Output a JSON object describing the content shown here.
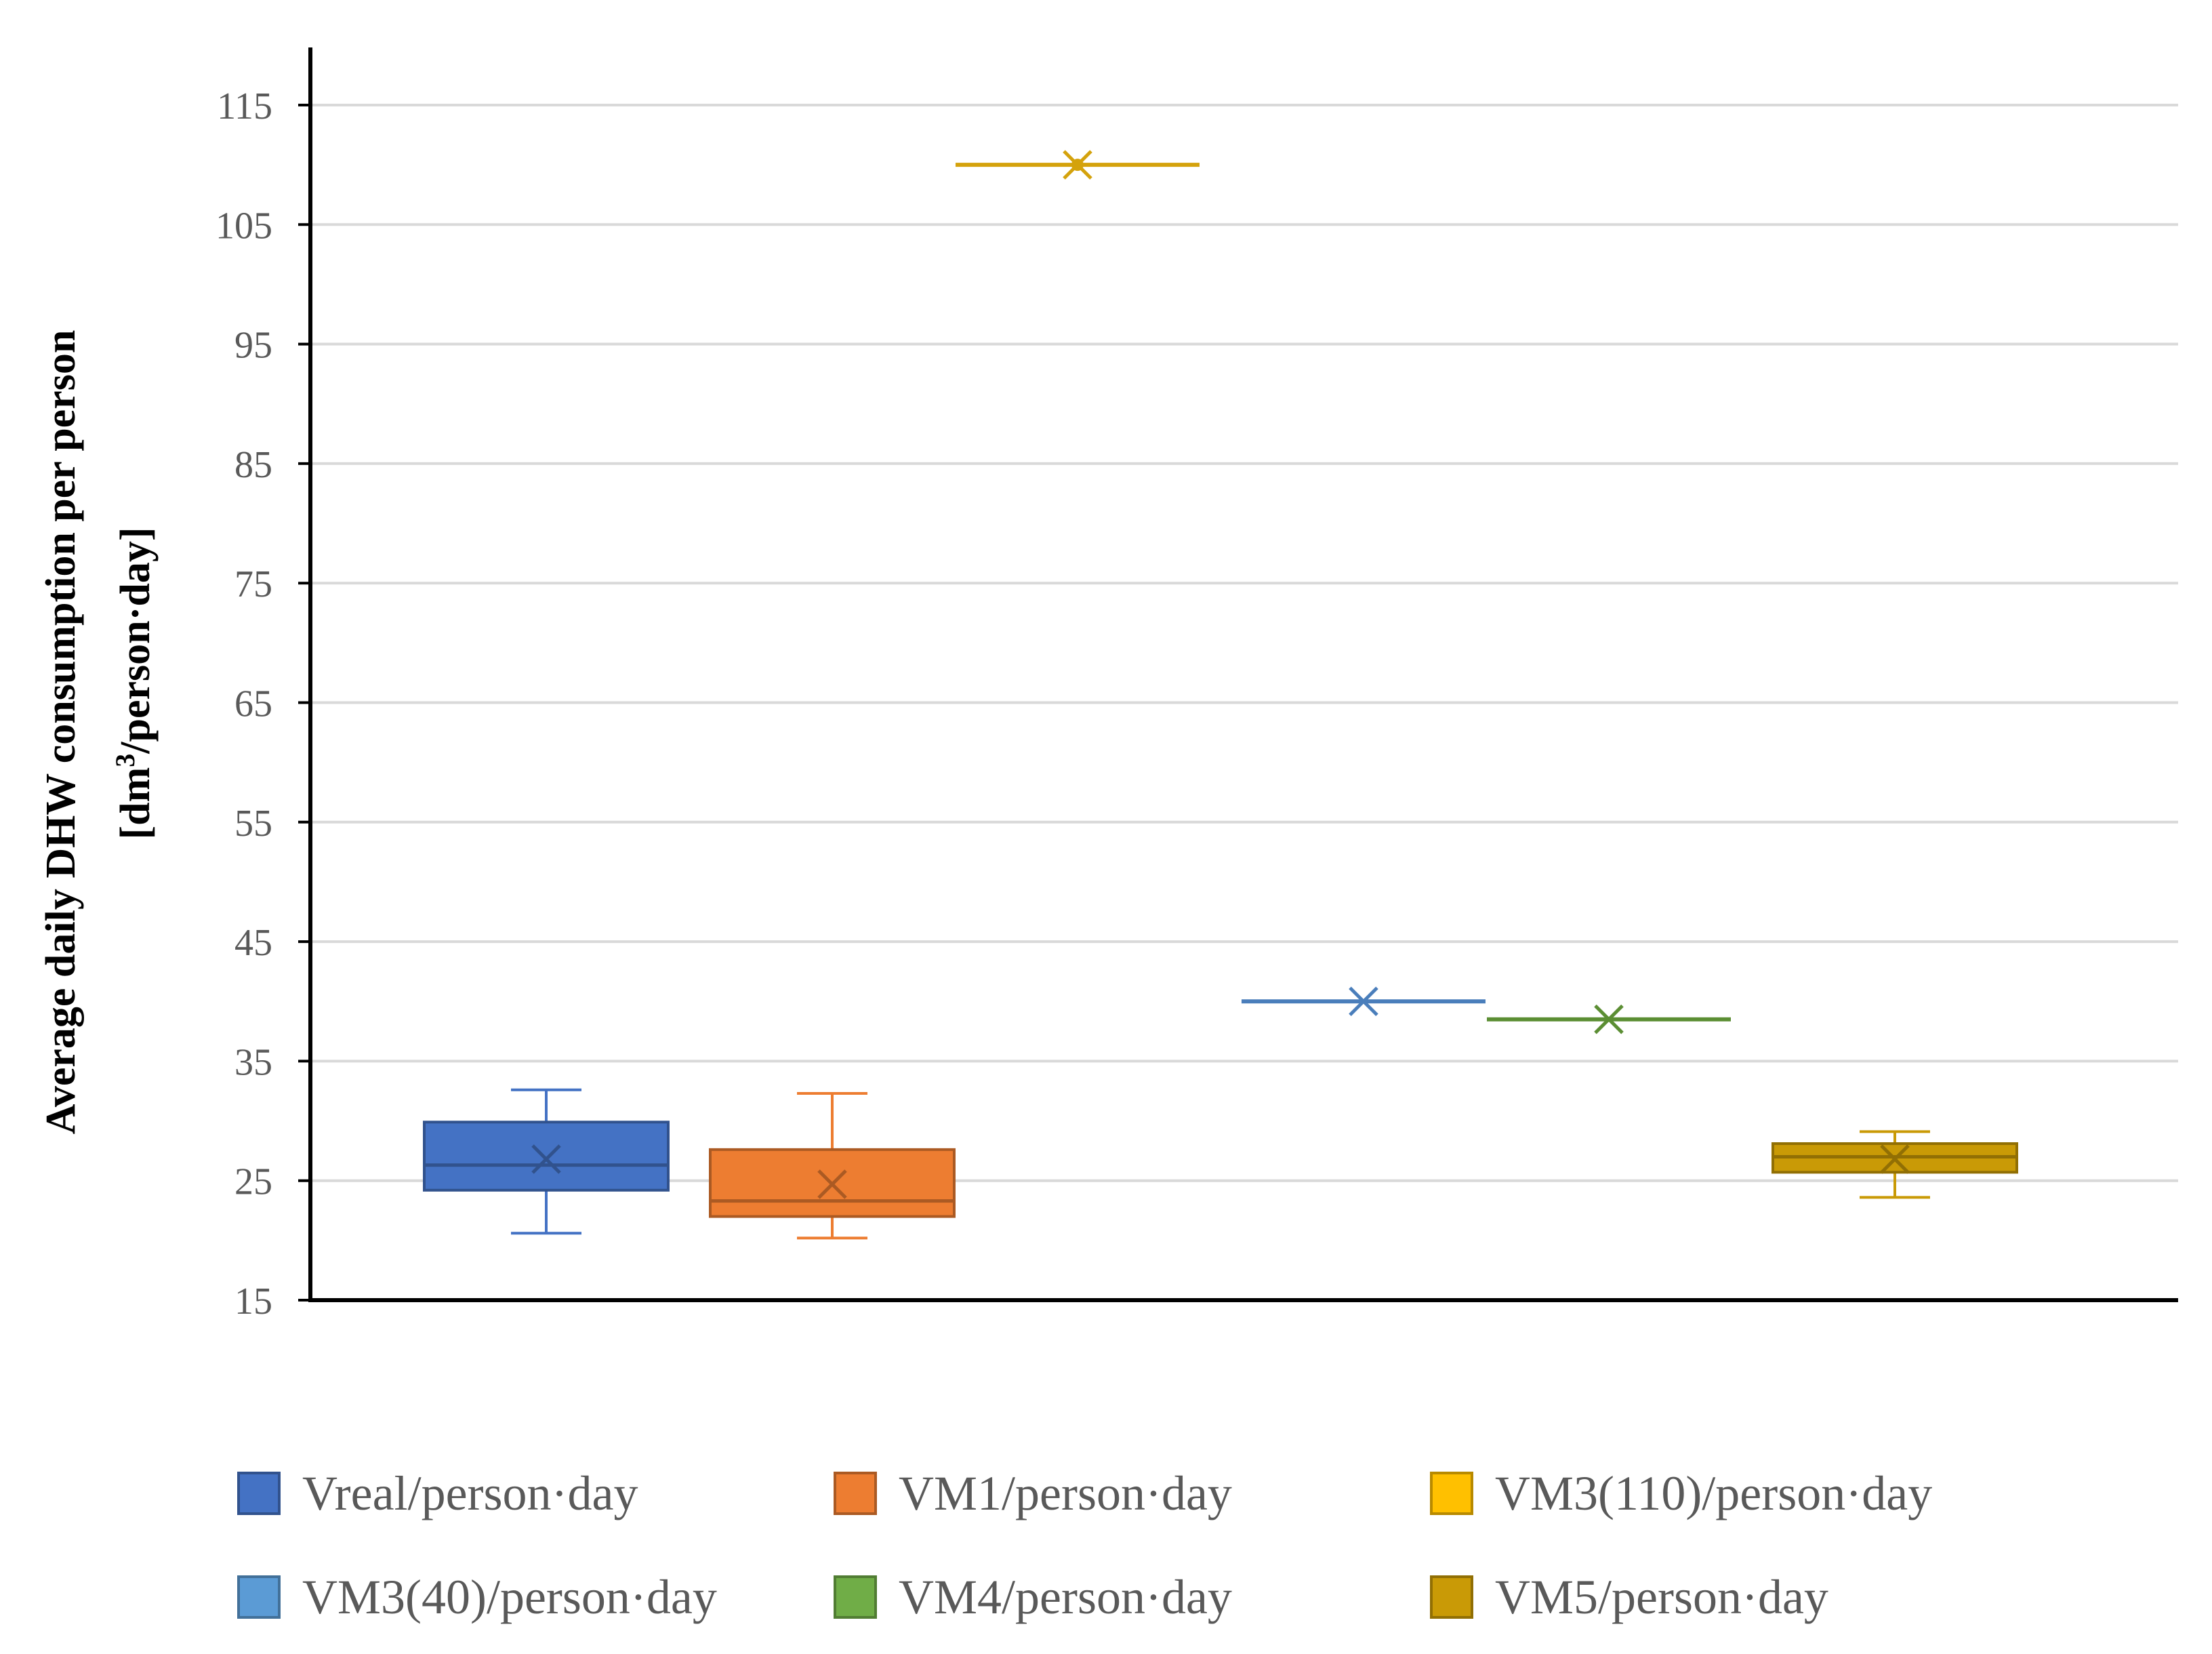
{
  "chart_data": {
    "type": "boxplot",
    "title": "",
    "xlabel": "",
    "ylabel": "Average daily DHW consumption per person",
    "ylabel_line2_prefix": "[dm",
    "ylabel_line2_sup": "3",
    "ylabel_line2_suffix": "/person·day]",
    "ylim": [
      15,
      120
    ],
    "yticks": [
      15,
      25,
      35,
      45,
      55,
      65,
      75,
      85,
      95,
      105,
      115
    ],
    "grid": true,
    "legend_position": "bottom",
    "series": [
      {
        "name": "Vreal/person·day",
        "color": "#4472C4",
        "min": 20.6,
        "q1": 24.2,
        "median": 26.3,
        "q3": 29.9,
        "max": 32.6,
        "mean": 26.8
      },
      {
        "name": "VM1/person·day",
        "color": "#ED7D31",
        "min": 20.2,
        "q1": 22.0,
        "median": 23.3,
        "q3": 27.6,
        "max": 32.3,
        "mean": 24.7
      },
      {
        "name": "VM3(110)/person·day",
        "color": "#FFC000",
        "min": 110.0,
        "q1": 110.0,
        "median": 110.0,
        "q3": 110.0,
        "max": 110.0,
        "mean": 110.0
      },
      {
        "name": "VM3(40)/person·day",
        "color": "#5B9BD5",
        "min": 40.0,
        "q1": 40.0,
        "median": 40.0,
        "q3": 40.0,
        "max": 40.0,
        "mean": 40.0
      },
      {
        "name": "VM4/person·day",
        "color": "#70AD47",
        "min": 38.5,
        "q1": 38.5,
        "median": 38.5,
        "q3": 38.5,
        "max": 38.5,
        "mean": 38.5
      },
      {
        "name": "VM5/person·day",
        "color": "#C99A06",
        "min": 23.6,
        "q1": 25.7,
        "median": 27.0,
        "q3": 28.1,
        "max": 29.1,
        "mean": 26.8
      }
    ]
  }
}
